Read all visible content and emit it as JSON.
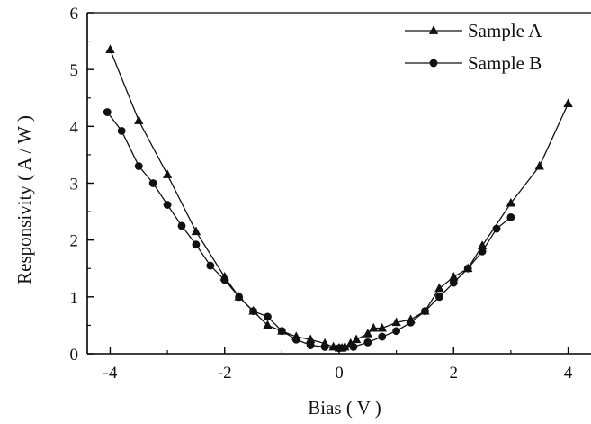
{
  "chart_data": {
    "type": "line",
    "title": "",
    "xlabel": "Bias ( V )",
    "ylabel": "Responsivity ( A / W )",
    "xlim": [
      -4.4,
      4.4
    ],
    "ylim": [
      0,
      6
    ],
    "xticks": [
      -4,
      -2,
      0,
      2,
      4
    ],
    "xtick_labels": [
      "-4",
      "-2",
      "0",
      "2",
      "4"
    ],
    "yticks": [
      0,
      1,
      2,
      3,
      4,
      5,
      6
    ],
    "ytick_labels": [
      "0",
      "1",
      "2",
      "3",
      "4",
      "5",
      "6"
    ],
    "grid": false,
    "legend_position": "top-right",
    "colors": {
      "line": "#111111",
      "marker": "#111111",
      "axis": "#000000"
    },
    "series": [
      {
        "name": "Sample A",
        "marker": "triangle",
        "x": [
          -4.0,
          -3.5,
          -3.0,
          -2.5,
          -2.0,
          -1.75,
          -1.5,
          -1.25,
          -1.0,
          -0.75,
          -0.5,
          -0.25,
          -0.1,
          0.0,
          0.05,
          0.1,
          0.2,
          0.3,
          0.5,
          0.6,
          0.75,
          1.0,
          1.25,
          1.5,
          1.75,
          2.0,
          2.25,
          2.5,
          3.0,
          3.5,
          4.0
        ],
        "y": [
          5.35,
          4.1,
          3.15,
          2.15,
          1.35,
          1.0,
          0.75,
          0.5,
          0.4,
          0.3,
          0.25,
          0.18,
          0.12,
          0.1,
          0.1,
          0.12,
          0.18,
          0.25,
          0.35,
          0.45,
          0.45,
          0.55,
          0.6,
          0.75,
          1.15,
          1.35,
          1.5,
          1.9,
          2.65,
          3.3,
          4.4
        ]
      },
      {
        "name": "Sample B",
        "marker": "circle",
        "x": [
          -4.05,
          -3.8,
          -3.5,
          -3.25,
          -3.0,
          -2.75,
          -2.5,
          -2.25,
          -2.0,
          -1.75,
          -1.5,
          -1.25,
          -1.0,
          -0.75,
          -0.5,
          -0.25,
          0.0,
          0.25,
          0.5,
          0.75,
          1.0,
          1.25,
          1.5,
          1.75,
          2.0,
          2.25,
          2.5,
          2.75,
          3.0
        ],
        "y": [
          4.25,
          3.92,
          3.3,
          3.0,
          2.62,
          2.25,
          1.92,
          1.55,
          1.3,
          1.0,
          0.75,
          0.65,
          0.4,
          0.25,
          0.15,
          0.12,
          0.1,
          0.12,
          0.2,
          0.3,
          0.4,
          0.55,
          0.75,
          1.0,
          1.25,
          1.5,
          1.8,
          2.2,
          2.4
        ]
      }
    ]
  }
}
